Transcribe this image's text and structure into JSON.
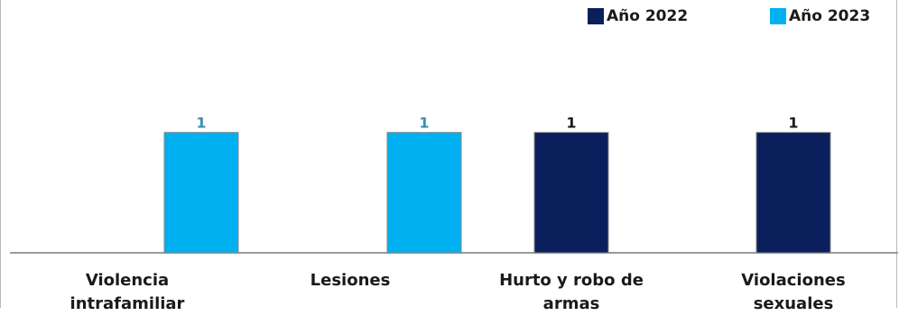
{
  "chart_data": {
    "type": "bar",
    "categories": [
      "Violencia intrafamiliar",
      "Lesiones",
      "Hurto y robo de armas",
      "Violaciones sexuales"
    ],
    "series": [
      {
        "name": "Año 2022",
        "color": "#0b1f5c",
        "values": [
          0,
          0,
          1,
          1
        ]
      },
      {
        "name": "Año 2023",
        "color": "#00b0f0",
        "values": [
          1,
          1,
          0,
          0
        ]
      }
    ],
    "ylim": [
      0,
      1.05
    ],
    "legend": "top-right",
    "data_labels": true,
    "grid": false
  }
}
